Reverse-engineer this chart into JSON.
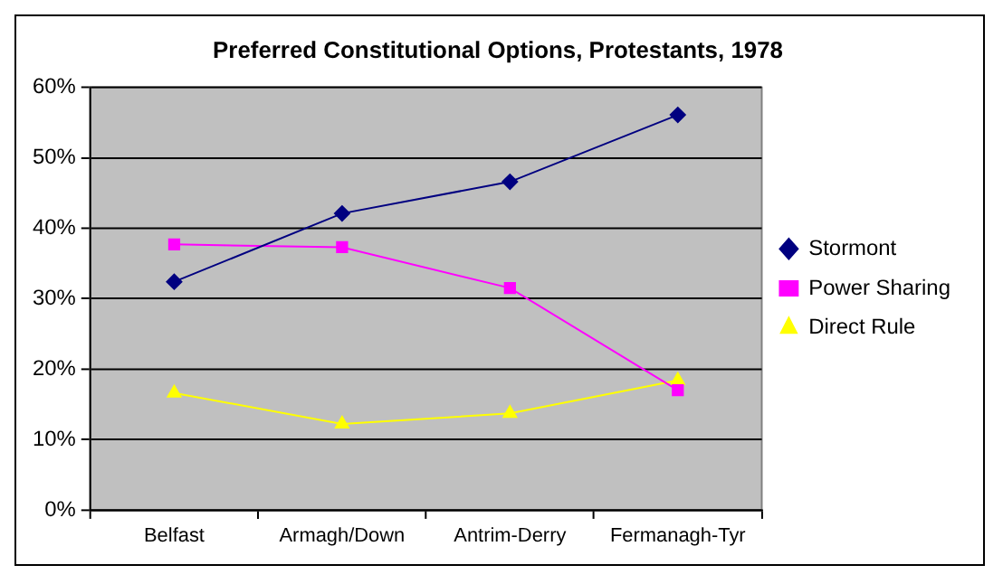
{
  "chart_data": {
    "type": "line",
    "title": "Preferred Constitutional Options, Protestants, 1978",
    "categories": [
      "Belfast",
      "Armagh/Down",
      "Antrim-Derry",
      "Fermanagh-Tyr"
    ],
    "series": [
      {
        "name": "Stormont",
        "color": "#000080",
        "marker": "diamond",
        "values": [
          32.4,
          42.1,
          46.6,
          56.1
        ]
      },
      {
        "name": "Power Sharing",
        "color": "#ff00ff",
        "marker": "square",
        "values": [
          37.7,
          37.3,
          31.5,
          17.0
        ]
      },
      {
        "name": "Direct Rule",
        "color": "#ffff00",
        "marker": "triangle",
        "values": [
          16.6,
          12.2,
          13.7,
          18.4
        ]
      }
    ],
    "ylim": [
      0,
      60
    ],
    "yticks": [
      {
        "value": 0,
        "label": "0%"
      },
      {
        "value": 10,
        "label": "10%"
      },
      {
        "value": 20,
        "label": "20%"
      },
      {
        "value": 30,
        "label": "30%"
      },
      {
        "value": 40,
        "label": "40%"
      },
      {
        "value": 50,
        "label": "50%"
      },
      {
        "value": 60,
        "label": "60%"
      }
    ],
    "grid": "y",
    "legend": "right"
  }
}
